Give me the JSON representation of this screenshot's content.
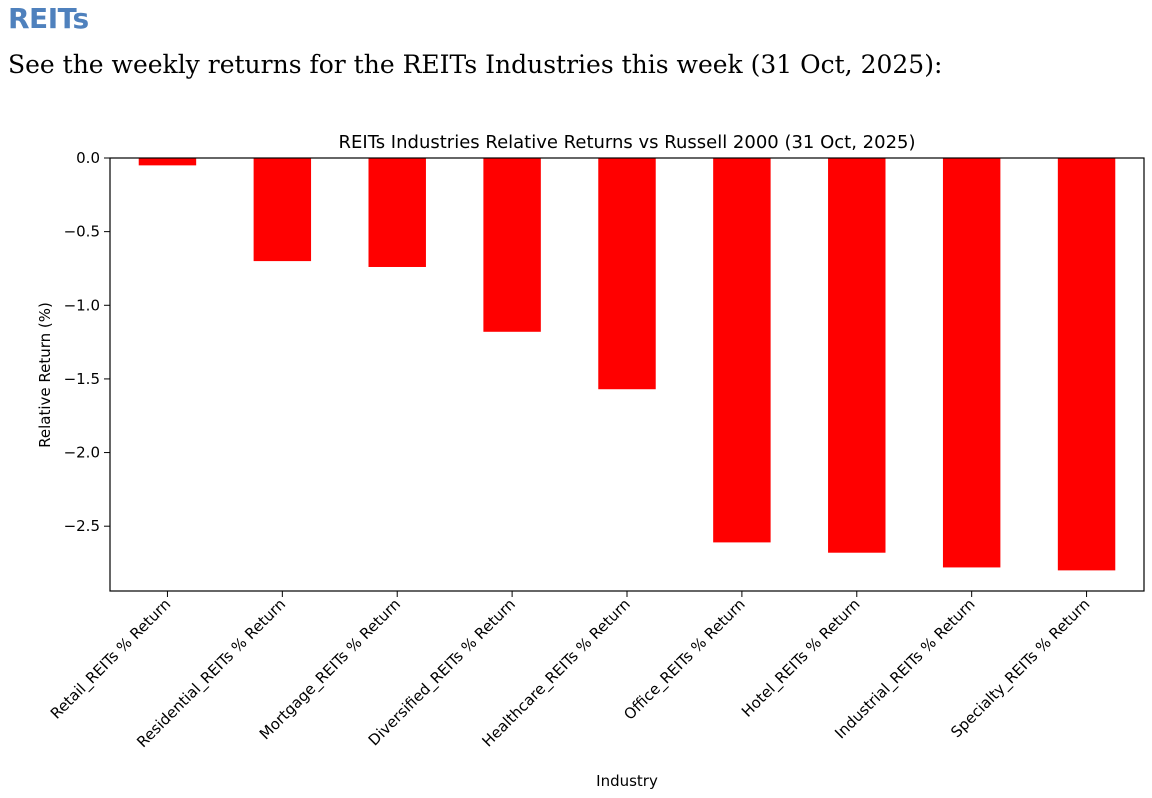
{
  "document": {
    "heading": "REITs",
    "intro": "See the weekly returns for the REITs Industries this week (31 Oct, 2025):"
  },
  "chart_data": {
    "type": "bar",
    "title": "REITs Industries Relative Returns vs Russell 2000 (31 Oct, 2025)",
    "xlabel": "Industry",
    "ylabel": "Relative Return (%)",
    "categories": [
      "Retail_REITs % Return",
      "Residential_REITs % Return",
      "Mortgage_REITs % Return",
      "Diversified_REITs % Return",
      "Healthcare_REITs % Return",
      "Office_REITs % Return",
      "Hotel_REITs % Return",
      "Industrial_REITs % Return",
      "Specialty_REITs % Return"
    ],
    "values": [
      -0.05,
      -0.7,
      -0.74,
      -1.18,
      -1.57,
      -2.61,
      -2.68,
      -2.78,
      -2.8
    ],
    "ylim": [
      -2.94,
      0.0
    ],
    "yticks": [
      0.0,
      -0.5,
      -1.0,
      -1.5,
      -2.0,
      -2.5
    ],
    "ytick_labels": [
      "0.0",
      "−0.5",
      "−1.0",
      "−1.5",
      "−2.0",
      "−2.5"
    ],
    "bar_color": "#ff0000",
    "grid": false,
    "legend": "none"
  }
}
